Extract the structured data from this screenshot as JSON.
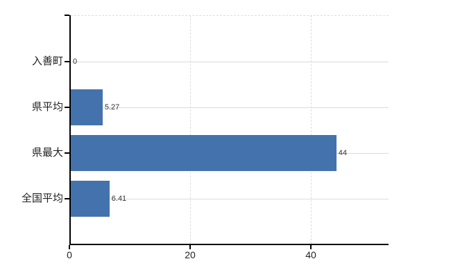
{
  "chart_data": {
    "type": "bar",
    "orientation": "horizontal",
    "title": "",
    "xlabel": "",
    "ylabel": "",
    "categories": [
      "入善町",
      "県平均",
      "県最大",
      "全国平均"
    ],
    "values": [
      0,
      5.27,
      44,
      6.41
    ],
    "value_labels": [
      "0",
      "5.27",
      "44",
      "6.41"
    ],
    "x_ticks": [
      0,
      20,
      40
    ],
    "x_tick_labels": [
      "0",
      "20",
      "40"
    ],
    "xlim": [
      0,
      52.9
    ],
    "grid": true,
    "legend": "none",
    "bar_color": "#4472ad",
    "axis_color": "#000000",
    "h_gridline_color": "#d9ddd9",
    "dashed_gridline_color": "#dddddd",
    "category_text_color": "#222222",
    "value_text_color": "#333333",
    "background_color": "#ffffff"
  }
}
